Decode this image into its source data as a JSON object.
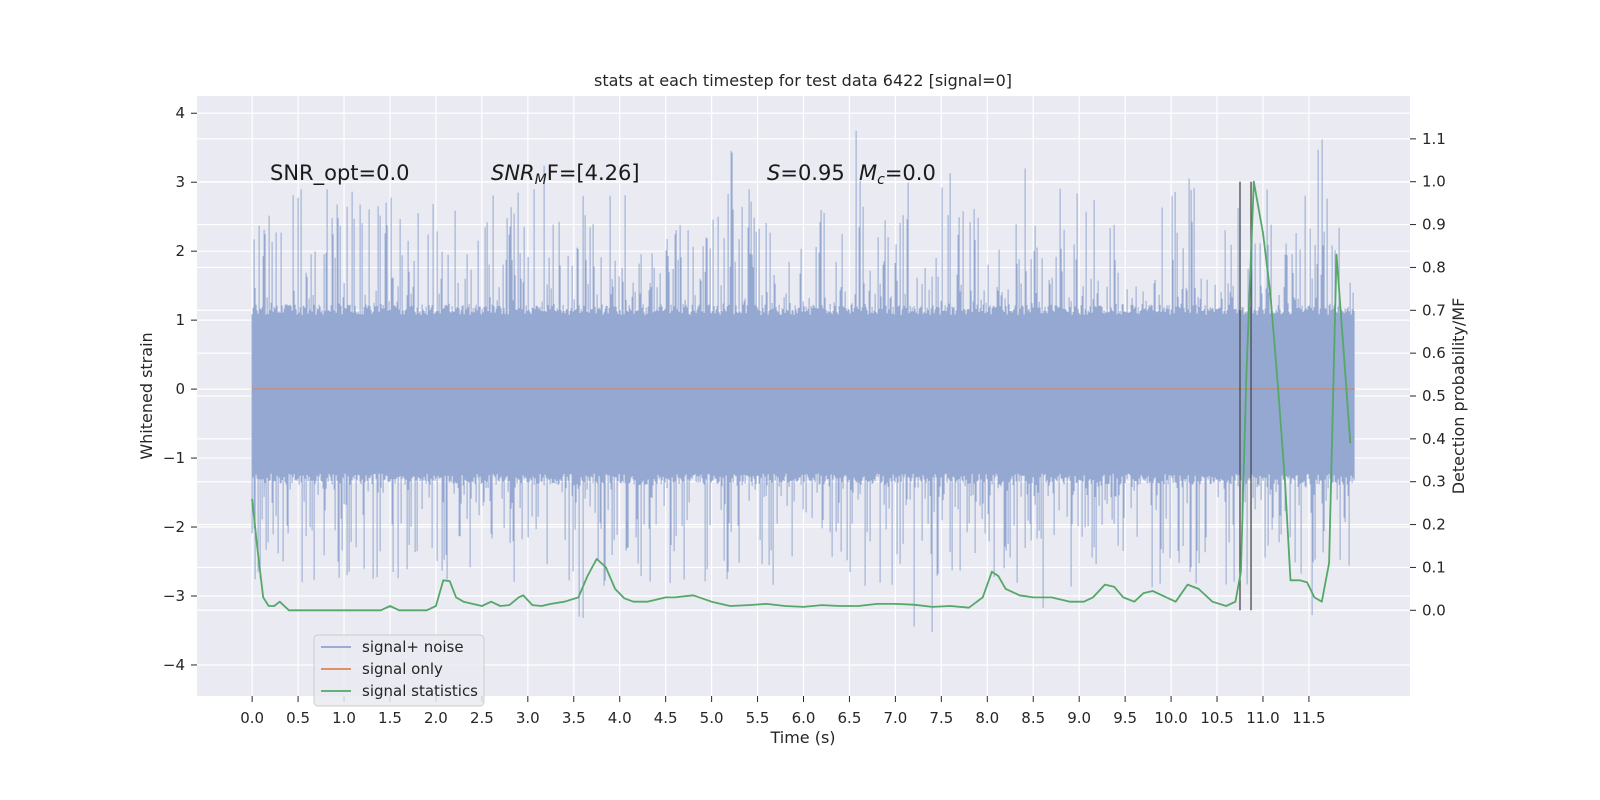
{
  "chart_data": {
    "type": "line",
    "title": "stats at each timestep for test data 6422 [signal=0]",
    "xlabel": "Time (s)",
    "ylabel": "Whitened strain",
    "y2label": "Detection probability/MF",
    "xlim": [
      -0.6,
      12.6
    ],
    "ylim": [
      -4.45,
      4.25
    ],
    "y2lim": [
      -0.2,
      1.2
    ],
    "x_ticks": [
      0.0,
      0.5,
      1.0,
      1.5,
      2.0,
      2.5,
      3.0,
      3.5,
      4.0,
      4.5,
      5.0,
      5.5,
      6.0,
      6.5,
      7.0,
      7.5,
      8.0,
      8.5,
      9.0,
      9.5,
      10.0,
      10.5,
      11.0,
      11.5
    ],
    "x_tick_labels": [
      "0.0",
      "0.5",
      "1.0",
      "1.5",
      "2.0",
      "2.5",
      "3.0",
      "3.5",
      "4.0",
      "4.5",
      "5.0",
      "5.5",
      "6.0",
      "6.5",
      "7.0",
      "7.5",
      "8.0",
      "8.5",
      "9.0",
      "9.5",
      "10.0",
      "10.5",
      "11.0",
      "11.5"
    ],
    "y_ticks": [
      -4,
      -3,
      -2,
      -1,
      0,
      1,
      2,
      3,
      4
    ],
    "y_tick_labels": [
      "−4",
      "−3",
      "−2",
      "−1",
      "0",
      "1",
      "2",
      "3",
      "4"
    ],
    "y2_ticks": [
      0.0,
      0.1,
      0.2,
      0.3,
      0.4,
      0.5,
      0.6,
      0.7,
      0.8,
      0.9,
      1.0,
      1.1
    ],
    "y2_tick_labels": [
      "0.0",
      "0.1",
      "0.2",
      "0.3",
      "0.4",
      "0.5",
      "0.6",
      "0.7",
      "0.8",
      "0.9",
      "1.0",
      "1.1"
    ],
    "grid": true,
    "legend_position": "lower-left",
    "annotations": {
      "snr_opt": "SNR_opt=0.0",
      "snr_mf_main": "SNR",
      "snr_mf_sub": "M",
      "snr_mf_tail": "F=[4.26]",
      "s_label": "S",
      "s_value": "=0.95",
      "mc_main": "M",
      "mc_sub": "c",
      "mc_value": "=0.0"
    },
    "series": [
      {
        "name": "signal+ noise",
        "color": "#8fa4cf",
        "kind": "noise",
        "x_range": [
          0.0,
          12.0
        ],
        "envelope_typical": [
          -1.3,
          1.15
        ],
        "spike_range": [
          -4.05,
          3.85
        ]
      },
      {
        "name": "signal only",
        "color": "#dd8452",
        "x": [
          0.0,
          12.0
        ],
        "y": [
          0.0,
          0.0
        ]
      },
      {
        "name": "signal statistics",
        "color": "#55a868",
        "axis": "right",
        "x": [
          0.0,
          0.06,
          0.12,
          0.18,
          0.24,
          0.3,
          0.4,
          0.5,
          0.6,
          0.7,
          0.8,
          0.9,
          1.0,
          1.2,
          1.4,
          1.5,
          1.6,
          1.7,
          1.8,
          1.9,
          2.0,
          2.08,
          2.15,
          2.22,
          2.3,
          2.4,
          2.5,
          2.6,
          2.7,
          2.8,
          2.9,
          2.95,
          3.05,
          3.15,
          3.25,
          3.4,
          3.55,
          3.65,
          3.75,
          3.85,
          3.95,
          4.05,
          4.15,
          4.3,
          4.5,
          4.6,
          4.8,
          5.0,
          5.2,
          5.4,
          5.6,
          5.8,
          6.0,
          6.2,
          6.4,
          6.6,
          6.8,
          7.0,
          7.2,
          7.4,
          7.6,
          7.8,
          7.95,
          8.05,
          8.12,
          8.2,
          8.35,
          8.5,
          8.7,
          8.9,
          9.05,
          9.15,
          9.28,
          9.38,
          9.48,
          9.6,
          9.7,
          9.8,
          9.95,
          10.05,
          10.18,
          10.3,
          10.45,
          10.6,
          10.7,
          10.76,
          10.82,
          10.9,
          11.0,
          11.08,
          11.16,
          11.24,
          11.3,
          11.4,
          11.48,
          11.56,
          11.64,
          11.72,
          11.8,
          11.88,
          11.95
        ],
        "y": [
          0.26,
          0.14,
          0.03,
          0.01,
          0.01,
          0.02,
          0.0,
          0.0,
          0.0,
          0.0,
          0.0,
          0.0,
          0.0,
          0.0,
          0.0,
          0.01,
          0.0,
          0.0,
          0.0,
          0.0,
          0.01,
          0.07,
          0.068,
          0.03,
          0.02,
          0.015,
          0.01,
          0.02,
          0.01,
          0.012,
          0.03,
          0.035,
          0.012,
          0.01,
          0.015,
          0.02,
          0.03,
          0.08,
          0.12,
          0.1,
          0.05,
          0.028,
          0.02,
          0.02,
          0.03,
          0.03,
          0.035,
          0.02,
          0.01,
          0.012,
          0.015,
          0.01,
          0.008,
          0.012,
          0.01,
          0.01,
          0.015,
          0.015,
          0.013,
          0.008,
          0.01,
          0.006,
          0.03,
          0.09,
          0.08,
          0.05,
          0.035,
          0.03,
          0.03,
          0.02,
          0.02,
          0.03,
          0.06,
          0.055,
          0.03,
          0.02,
          0.04,
          0.045,
          0.03,
          0.02,
          0.06,
          0.05,
          0.02,
          0.01,
          0.02,
          0.09,
          0.55,
          1.0,
          0.88,
          0.74,
          0.53,
          0.3,
          0.07,
          0.07,
          0.065,
          0.03,
          0.02,
          0.11,
          0.83,
          0.6,
          0.39
        ],
        "vlines": [
          10.75,
          10.87
        ]
      }
    ]
  }
}
